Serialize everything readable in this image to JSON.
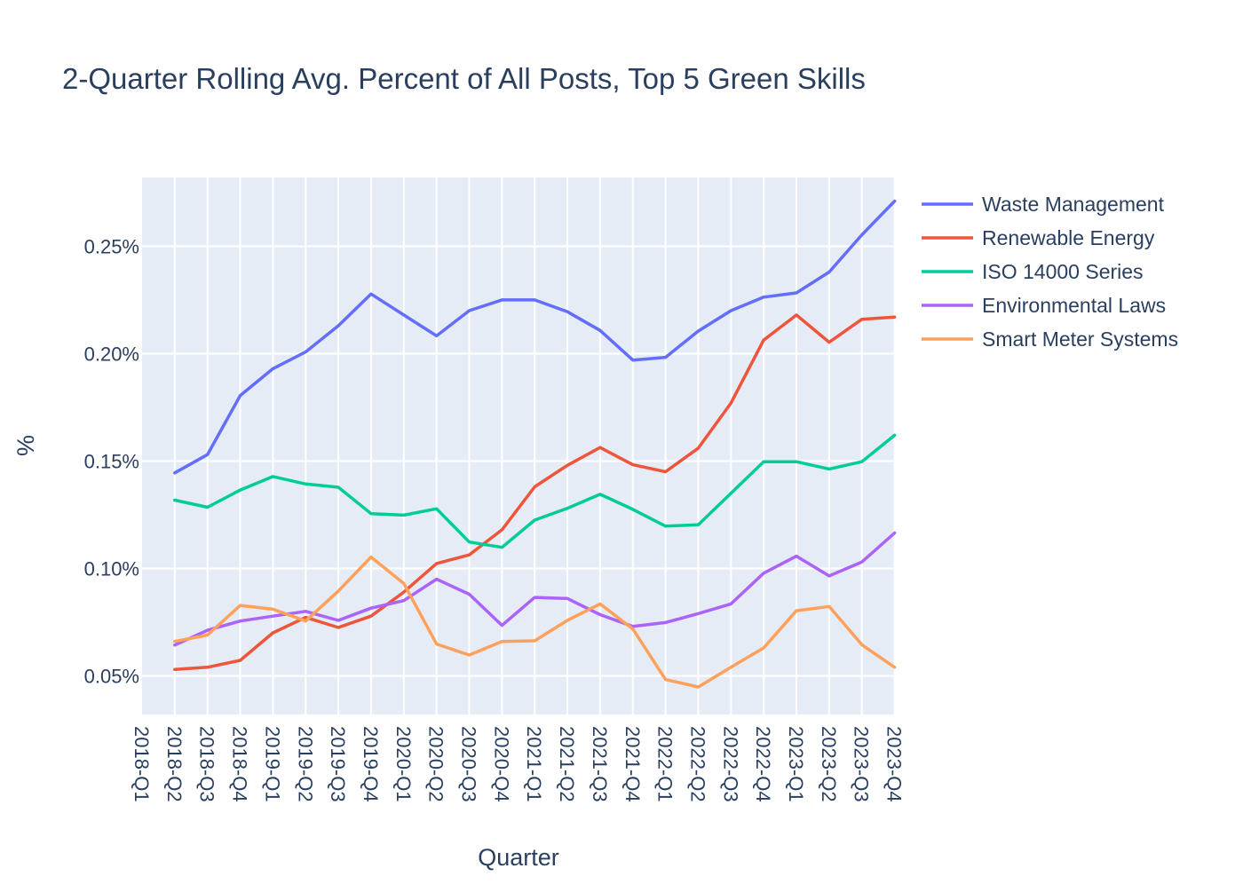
{
  "chart_data": {
    "type": "line",
    "title": "2-Quarter Rolling Avg. Percent of All Posts, Top 5 Green Skills",
    "xlabel": "Quarter",
    "ylabel": "%",
    "ylim": [
      0.032,
      0.282
    ],
    "y_ticks": [
      0.05,
      0.1,
      0.15,
      0.2,
      0.25
    ],
    "y_tick_labels": [
      "0.05%",
      "0.10%",
      "0.15%",
      "0.20%",
      "0.25%"
    ],
    "grid": true,
    "legend_position": "top-right",
    "plot_background": "#e5ecf6",
    "categories": [
      "2018-Q1",
      "2018-Q2",
      "2018-Q3",
      "2018-Q4",
      "2019-Q1",
      "2019-Q2",
      "2019-Q3",
      "2019-Q4",
      "2020-Q1",
      "2020-Q2",
      "2020-Q3",
      "2020-Q4",
      "2021-Q1",
      "2021-Q2",
      "2021-Q3",
      "2021-Q4",
      "2022-Q1",
      "2022-Q2",
      "2022-Q3",
      "2022-Q4",
      "2023-Q1",
      "2023-Q2",
      "2023-Q3",
      "2023-Q4"
    ],
    "series": [
      {
        "name": "Waste Management",
        "color": "#636efa",
        "values": [
          null,
          0.1445,
          0.153,
          0.1805,
          0.193,
          0.2008,
          0.213,
          0.2278,
          0.218,
          0.2083,
          0.22,
          0.225,
          0.225,
          0.2195,
          0.2108,
          0.197,
          0.1983,
          0.2105,
          0.22,
          0.2263,
          0.2283,
          0.238,
          0.2553,
          0.271
        ]
      },
      {
        "name": "Renewable Energy",
        "color": "#ef553b",
        "values": [
          null,
          0.053,
          0.054,
          0.0572,
          0.07,
          0.0772,
          0.0725,
          0.0778,
          0.089,
          0.1023,
          0.1063,
          0.118,
          0.138,
          0.148,
          0.1563,
          0.1483,
          0.145,
          0.156,
          0.177,
          0.2063,
          0.218,
          0.2053,
          0.216,
          0.217
        ]
      },
      {
        "name": "ISO 14000 Series",
        "color": "#00cc96",
        "values": [
          null,
          0.1318,
          0.1285,
          0.1365,
          0.1428,
          0.1393,
          0.1378,
          0.1255,
          0.1248,
          0.1278,
          0.1123,
          0.1098,
          0.1225,
          0.128,
          0.1345,
          0.1275,
          0.1197,
          0.1203,
          0.135,
          0.1497,
          0.1497,
          0.1463,
          0.1497,
          0.162
        ]
      },
      {
        "name": "Environmental Laws",
        "color": "#ab63fa",
        "values": [
          null,
          0.0643,
          0.0712,
          0.0755,
          0.0778,
          0.08,
          0.0758,
          0.0815,
          0.085,
          0.095,
          0.088,
          0.0735,
          0.0865,
          0.086,
          0.0785,
          0.073,
          0.0748,
          0.079,
          0.0835,
          0.0978,
          0.1057,
          0.0965,
          0.103,
          0.1165
        ]
      },
      {
        "name": "Smart Meter Systems",
        "color": "#ffa15a",
        "values": [
          null,
          0.066,
          0.069,
          0.0828,
          0.081,
          0.0755,
          0.0895,
          0.1053,
          0.093,
          0.0648,
          0.0597,
          0.066,
          0.0663,
          0.0758,
          0.0835,
          0.0718,
          0.0483,
          0.0448,
          0.054,
          0.063,
          0.0803,
          0.0823,
          0.0645,
          0.054
        ]
      }
    ]
  }
}
